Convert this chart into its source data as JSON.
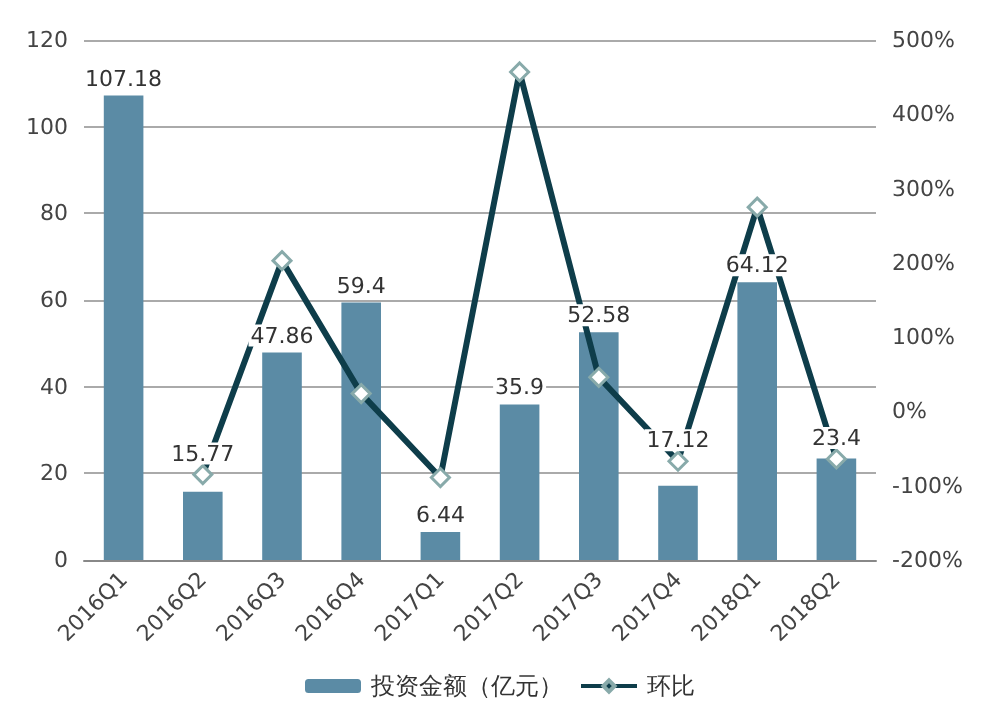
{
  "chart_data": {
    "type": "bar",
    "categories": [
      "2016Q1",
      "2016Q2",
      "2016Q3",
      "2016Q4",
      "2017Q1",
      "2017Q2",
      "2017Q3",
      "2017Q4",
      "2018Q1",
      "2018Q2"
    ],
    "series": [
      {
        "name": "投资金额（亿元）",
        "type": "bar",
        "color": "#5b8ba5",
        "values": [
          107.18,
          15.77,
          47.86,
          59.4,
          6.44,
          35.9,
          52.58,
          17.12,
          64.12,
          23.4
        ],
        "data_labels": true
      },
      {
        "name": "环比",
        "type": "line",
        "axis": "y2",
        "color": "#0e3d4a",
        "marker": "diamond",
        "values": [
          null,
          -85,
          203,
          24,
          -89,
          457,
          46,
          -67,
          275,
          -64
        ]
      }
    ],
    "ylim": [
      0,
      120
    ],
    "yticks": [
      0,
      20,
      40,
      60,
      80,
      100,
      120
    ],
    "y2lim": [
      -200,
      500
    ],
    "y2ticks": [
      {
        "value": -200,
        "label": "-200%"
      },
      {
        "value": -100,
        "label": "-100%"
      },
      {
        "value": 0,
        "label": "0%"
      },
      {
        "value": 100,
        "label": "100%"
      },
      {
        "value": 200,
        "label": "200%"
      },
      {
        "value": 300,
        "label": "300%"
      },
      {
        "value": 400,
        "label": "400%"
      },
      {
        "value": 500,
        "label": "500%"
      }
    ],
    "grid": "y",
    "legend": "bottom"
  }
}
